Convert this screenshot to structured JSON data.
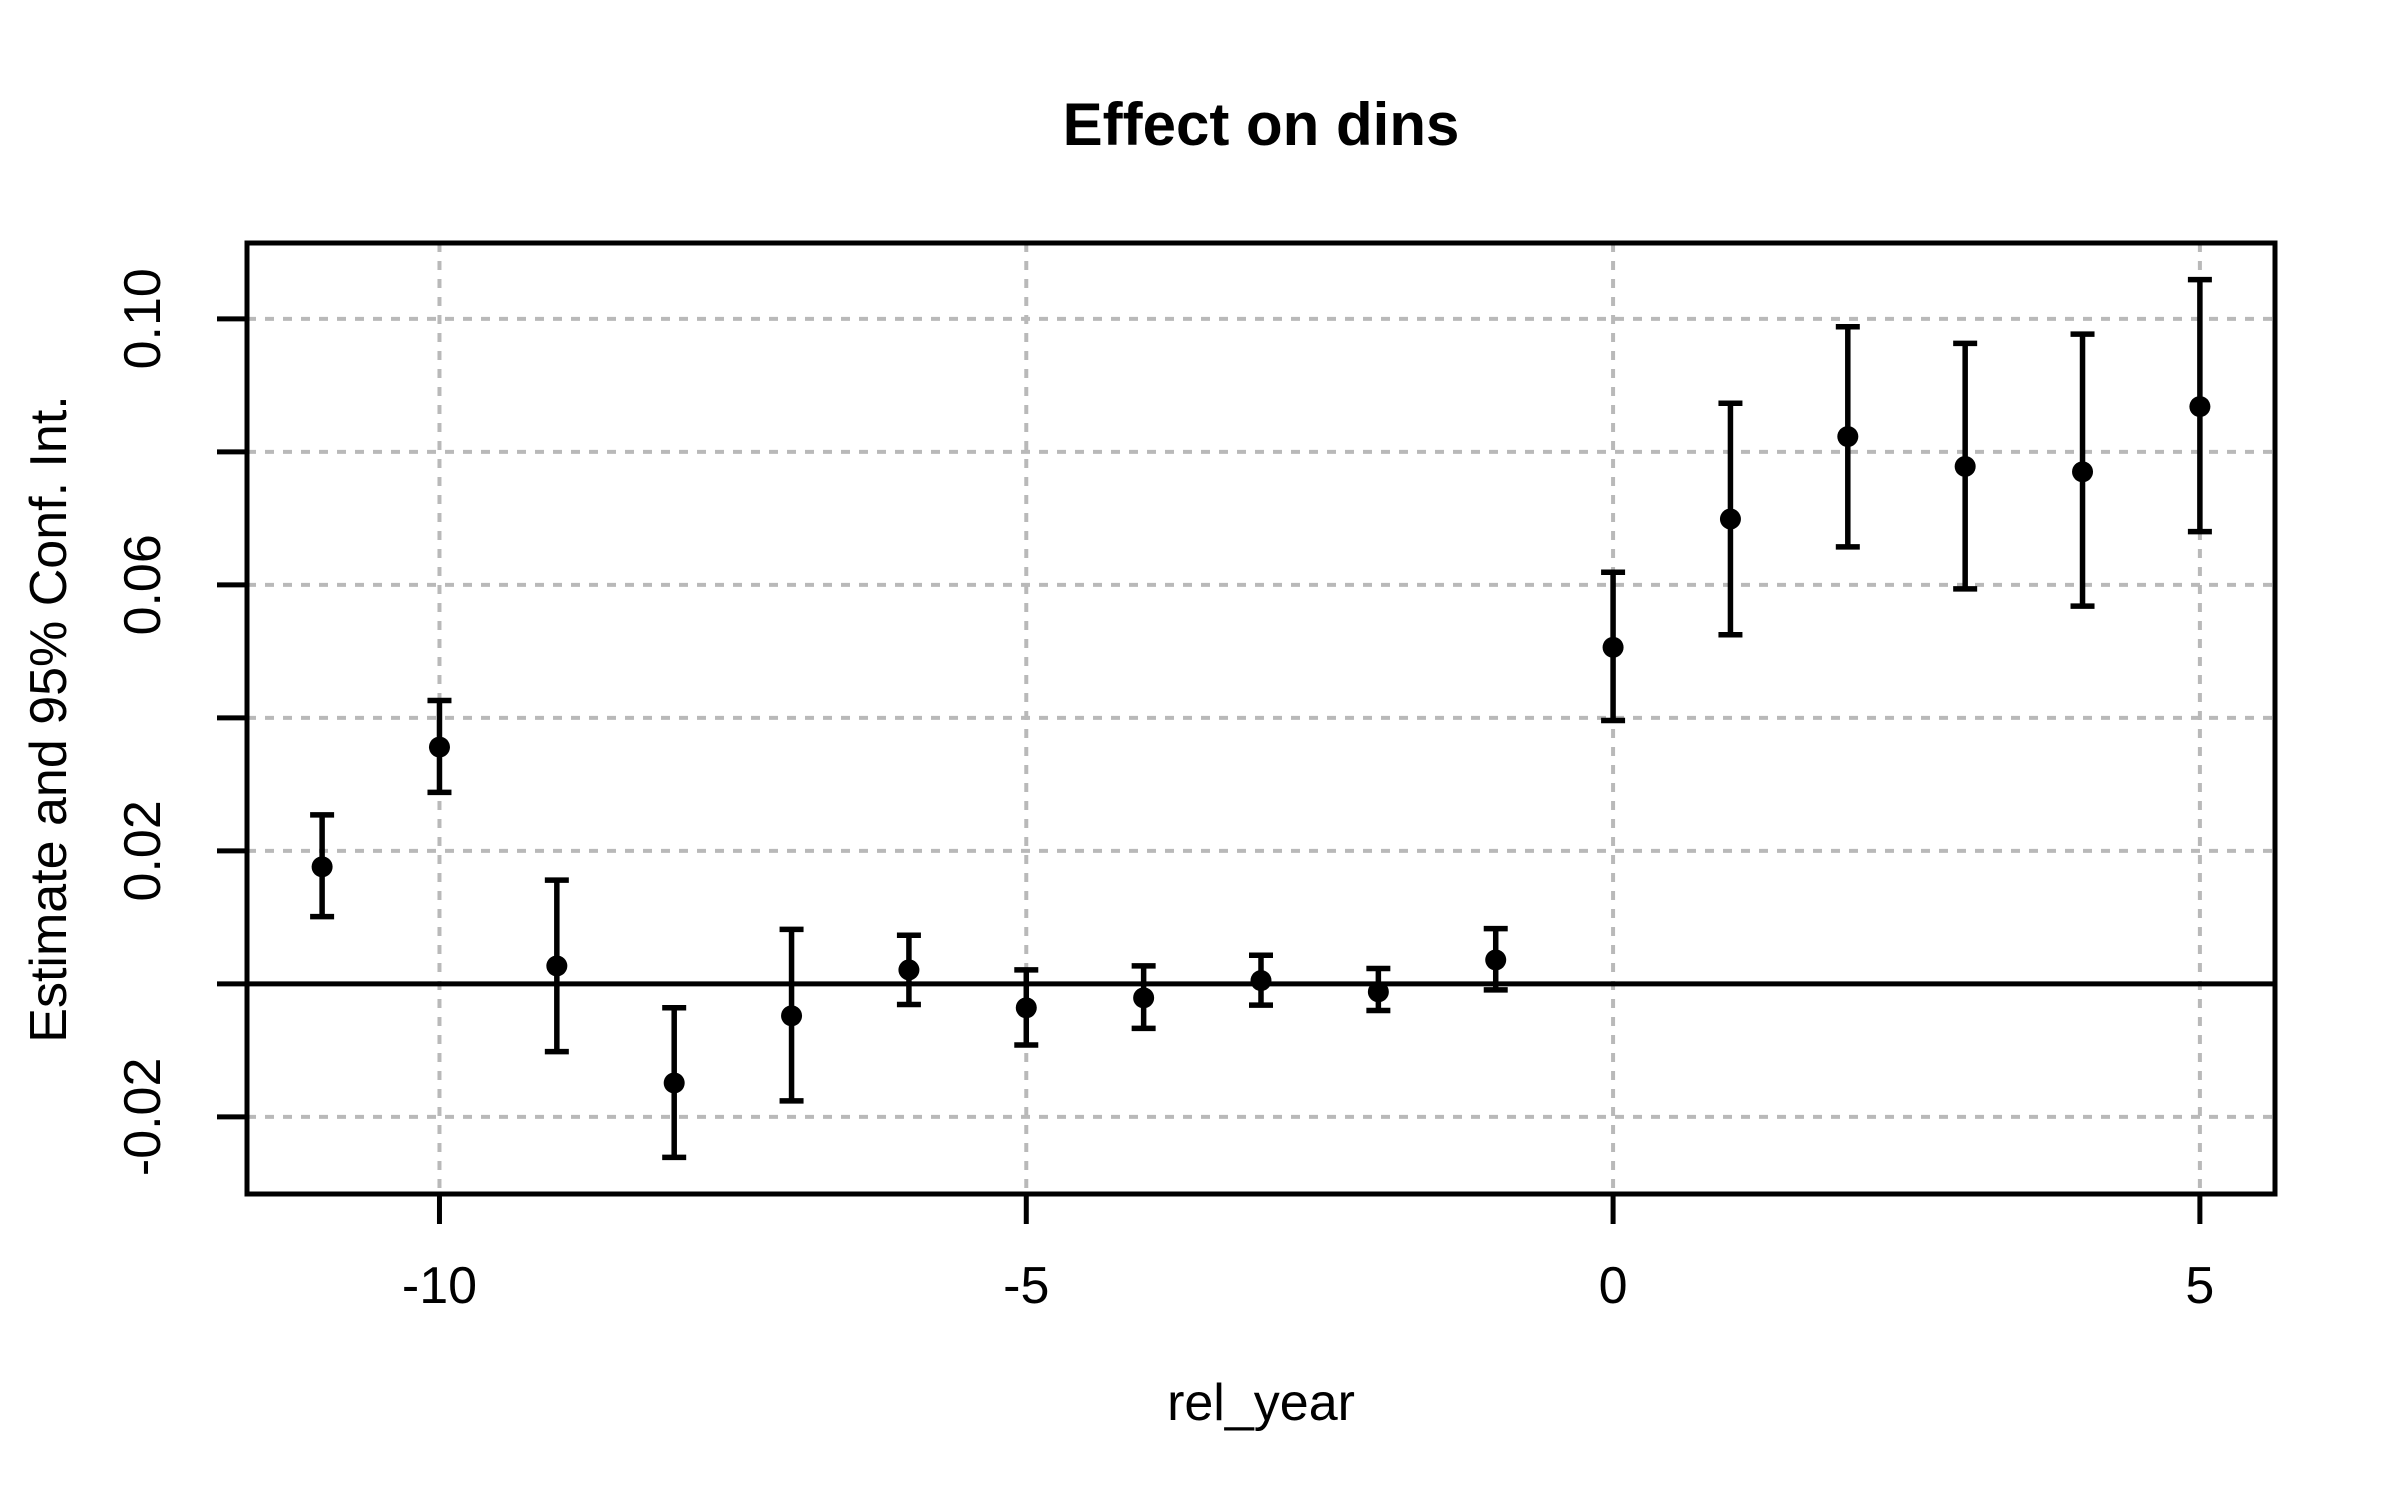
{
  "chart_data": {
    "type": "scatter",
    "subtype": "errorbar-event-study",
    "title": "Effect on dins",
    "xlabel": "rel_year",
    "ylabel": "Estimate and 95% Conf. Int.",
    "xlim": [
      -11.64,
      5.64
    ],
    "ylim": [
      -0.0316,
      0.1114
    ],
    "grid": true,
    "legend": "none",
    "reference_line_y": 0,
    "x_ticks": [
      {
        "value": -10,
        "label": "-10"
      },
      {
        "value": -5,
        "label": "-5"
      },
      {
        "value": 0,
        "label": "0"
      },
      {
        "value": 5,
        "label": "5"
      }
    ],
    "y_ticks": [
      {
        "value": -0.02,
        "label": "-0.02"
      },
      {
        "value": 0.0,
        "label": ""
      },
      {
        "value": 0.02,
        "label": "0.02"
      },
      {
        "value": 0.04,
        "label": ""
      },
      {
        "value": 0.06,
        "label": "0.06"
      },
      {
        "value": 0.08,
        "label": ""
      },
      {
        "value": 0.1,
        "label": "0.10"
      }
    ],
    "points": [
      {
        "rel_year": -11,
        "estimate": 0.0176,
        "ci_low": 0.0101,
        "ci_high": 0.0254
      },
      {
        "rel_year": -10,
        "estimate": 0.0356,
        "ci_low": 0.0288,
        "ci_high": 0.0426
      },
      {
        "rel_year": -9,
        "estimate": 0.0027,
        "ci_low": -0.0102,
        "ci_high": 0.0156
      },
      {
        "rel_year": -8,
        "estimate": -0.0149,
        "ci_low": -0.0261,
        "ci_high": -0.0036
      },
      {
        "rel_year": -7,
        "estimate": -0.0048,
        "ci_low": -0.0176,
        "ci_high": 0.0082
      },
      {
        "rel_year": -6,
        "estimate": 0.0021,
        "ci_low": -0.0031,
        "ci_high": 0.0073
      },
      {
        "rel_year": -5,
        "estimate": -0.0036,
        "ci_low": -0.0092,
        "ci_high": 0.0021
      },
      {
        "rel_year": -4,
        "estimate": -0.0021,
        "ci_low": -0.0067,
        "ci_high": 0.0027
      },
      {
        "rel_year": -3,
        "estimate": 0.0005,
        "ci_low": -0.0032,
        "ci_high": 0.0043
      },
      {
        "rel_year": -2,
        "estimate": -0.0012,
        "ci_low": -0.004,
        "ci_high": 0.0023
      },
      {
        "rel_year": -1,
        "estimate": 0.0036,
        "ci_low": -0.0009,
        "ci_high": 0.0083
      },
      {
        "rel_year": 0,
        "estimate": 0.0506,
        "ci_low": 0.0396,
        "ci_high": 0.0619
      },
      {
        "rel_year": 1,
        "estimate": 0.0699,
        "ci_low": 0.0525,
        "ci_high": 0.0873
      },
      {
        "rel_year": 2,
        "estimate": 0.0823,
        "ci_low": 0.0657,
        "ci_high": 0.0988
      },
      {
        "rel_year": 3,
        "estimate": 0.0778,
        "ci_low": 0.0594,
        "ci_high": 0.0963
      },
      {
        "rel_year": 4,
        "estimate": 0.077,
        "ci_low": 0.0568,
        "ci_high": 0.0977
      },
      {
        "rel_year": 5,
        "estimate": 0.0868,
        "ci_low": 0.068,
        "ci_high": 0.1059
      }
    ],
    "colors": {
      "foreground": "#000000",
      "grid": "#b9b9b9",
      "background": "#ffffff"
    }
  }
}
